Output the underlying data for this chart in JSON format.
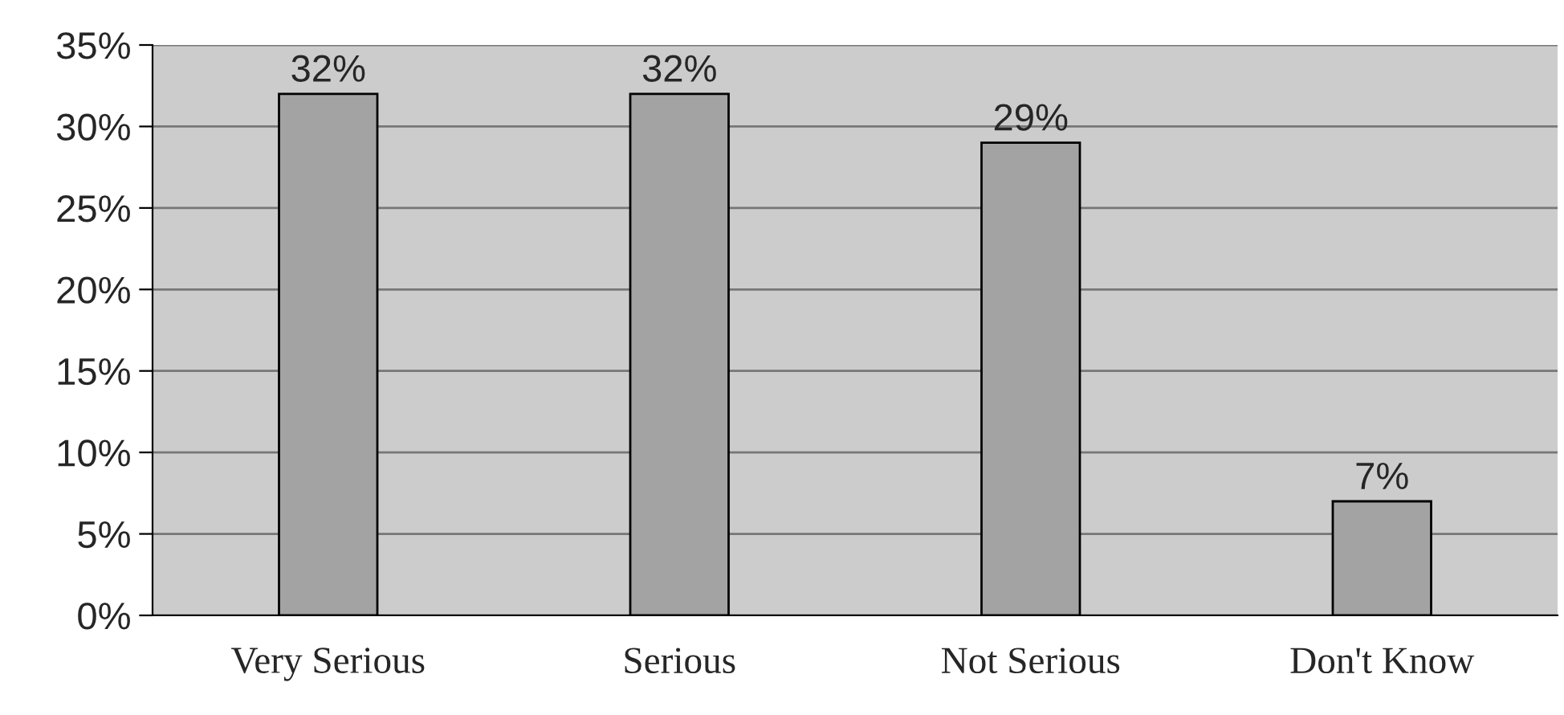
{
  "chart_data": {
    "type": "bar",
    "categories": [
      "Very Serious",
      "Serious",
      "Not Serious",
      "Don't Know"
    ],
    "values": [
      32,
      32,
      29,
      7
    ],
    "value_labels": [
      "32%",
      "32%",
      "29%",
      "7%"
    ],
    "color": "#a3a3a3",
    "ylim": [
      0,
      35
    ],
    "yticks": [
      {
        "value": 0,
        "label": "0%"
      },
      {
        "value": 5,
        "label": "5%"
      },
      {
        "value": 10,
        "label": "10%"
      },
      {
        "value": 15,
        "label": "15%"
      },
      {
        "value": 20,
        "label": "20%"
      },
      {
        "value": 25,
        "label": "25%"
      },
      {
        "value": 30,
        "label": "30%"
      },
      {
        "value": 35,
        "label": "35%"
      }
    ],
    "grid": "y"
  }
}
